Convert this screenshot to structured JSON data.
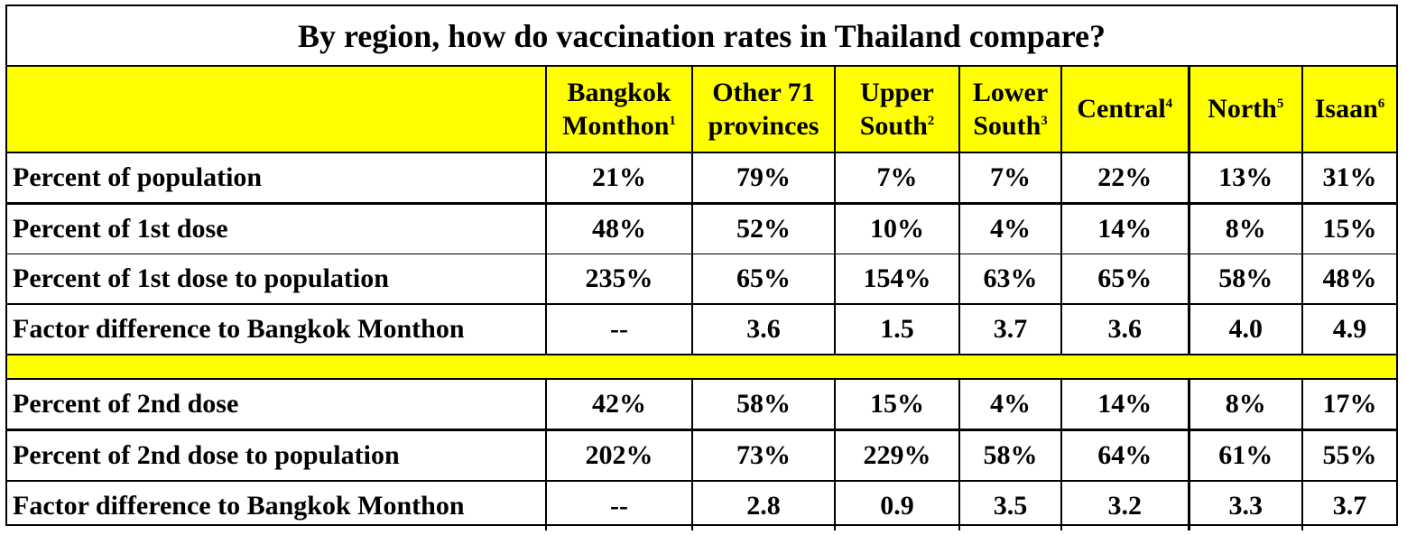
{
  "title": "By region, how do vaccination rates in Thailand compare?",
  "columns": [
    {
      "line1": "Bangkok",
      "line2": "Monthon",
      "sup": "1"
    },
    {
      "line1": "Other 71",
      "line2": "provinces",
      "sup": ""
    },
    {
      "line1": "Upper",
      "line2": "South",
      "sup": "2"
    },
    {
      "line1": "Lower",
      "line2": "South",
      "sup": "3"
    },
    {
      "line1": "Central",
      "line2": "",
      "sup": "4"
    },
    {
      "line1": "North",
      "line2": "",
      "sup": "5"
    },
    {
      "line1": "Isaan",
      "line2": "",
      "sup": "6"
    }
  ],
  "rows": [
    {
      "label": "Percent of population",
      "values": [
        "21%",
        "79%",
        "7%",
        "7%",
        "22%",
        "13%",
        "31%"
      ]
    },
    {
      "label": "Percent of 1st dose",
      "values": [
        "48%",
        "52%",
        "10%",
        "4%",
        "14%",
        "8%",
        "15%"
      ]
    },
    {
      "label": "Percent of 1st dose to population",
      "values": [
        "235%",
        "65%",
        "154%",
        "63%",
        "65%",
        "58%",
        "48%"
      ]
    },
    {
      "label": "Factor difference to Bangkok Monthon",
      "values": [
        "--",
        "3.6",
        "1.5",
        "3.7",
        "3.6",
        "4.0",
        "4.9"
      ]
    },
    {
      "label": "Percent of 2nd dose",
      "values": [
        "42%",
        "58%",
        "15%",
        "4%",
        "14%",
        "8%",
        "17%"
      ]
    },
    {
      "label": "Percent of 2nd dose to population",
      "values": [
        "202%",
        "73%",
        "229%",
        "58%",
        "64%",
        "61%",
        "55%"
      ]
    },
    {
      "label": "Factor difference to Bangkok Monthon",
      "values": [
        "--",
        "2.8",
        "0.9",
        "3.5",
        "3.2",
        "3.3",
        "3.7"
      ]
    }
  ],
  "colors": {
    "header_fill": "#ffff00",
    "background": "#ffffff",
    "text": "#000000"
  }
}
